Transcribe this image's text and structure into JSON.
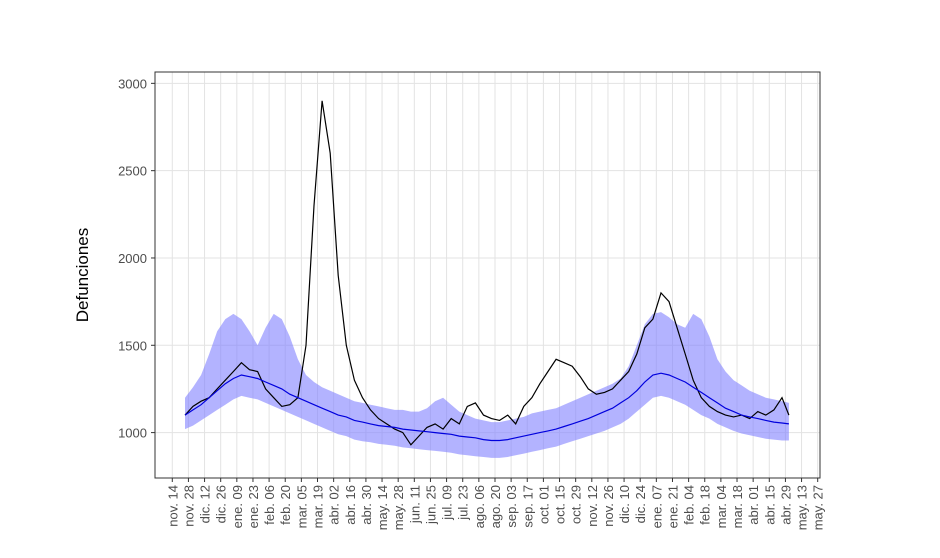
{
  "chart_data": {
    "type": "line",
    "ylabel": "Defunciones",
    "x": [
      11,
      18,
      25,
      32,
      39,
      46,
      53,
      60,
      67,
      74,
      81,
      88,
      95,
      102,
      109,
      116,
      123,
      130,
      137,
      144,
      151,
      158,
      165,
      172,
      179,
      186,
      193,
      200,
      207,
      214,
      221,
      228,
      235,
      242,
      249,
      256,
      263,
      270,
      277,
      284,
      291,
      298,
      305,
      312,
      319,
      326,
      333,
      340,
      347,
      354,
      361,
      368,
      375,
      382,
      389,
      396,
      403,
      410,
      417,
      424,
      431,
      438,
      445,
      452,
      459,
      466,
      473,
      480,
      487,
      494,
      501,
      508,
      515,
      522,
      529,
      535
    ],
    "band": {
      "color": "#8080ff",
      "upper": [
        1200,
        1260,
        1330,
        1450,
        1580,
        1650,
        1680,
        1650,
        1580,
        1500,
        1600,
        1680,
        1650,
        1550,
        1420,
        1330,
        1290,
        1260,
        1240,
        1220,
        1200,
        1180,
        1170,
        1160,
        1150,
        1140,
        1130,
        1130,
        1120,
        1120,
        1140,
        1180,
        1200,
        1160,
        1120,
        1100,
        1080,
        1070,
        1060,
        1060,
        1070,
        1080,
        1090,
        1110,
        1120,
        1130,
        1140,
        1160,
        1180,
        1200,
        1220,
        1240,
        1260,
        1280,
        1310,
        1380,
        1500,
        1620,
        1680,
        1690,
        1660,
        1620,
        1600,
        1680,
        1650,
        1550,
        1420,
        1350,
        1300,
        1270,
        1240,
        1220,
        1200,
        1190,
        1180,
        1170
      ],
      "lower": [
        1020,
        1040,
        1070,
        1100,
        1130,
        1160,
        1190,
        1210,
        1200,
        1190,
        1170,
        1150,
        1130,
        1110,
        1090,
        1070,
        1050,
        1030,
        1010,
        990,
        980,
        960,
        950,
        945,
        935,
        930,
        925,
        915,
        910,
        905,
        900,
        895,
        890,
        885,
        875,
        870,
        865,
        860,
        855,
        855,
        860,
        870,
        880,
        890,
        900,
        910,
        920,
        935,
        950,
        965,
        980,
        995,
        1010,
        1030,
        1050,
        1080,
        1120,
        1160,
        1200,
        1210,
        1200,
        1180,
        1160,
        1130,
        1100,
        1080,
        1050,
        1030,
        1010,
        995,
        985,
        975,
        965,
        960,
        955,
        955
      ]
    },
    "series": [
      {
        "color": "#000000",
        "values": [
          1100,
          1150,
          1180,
          1200,
          1250,
          1300,
          1350,
          1400,
          1360,
          1350,
          1250,
          1200,
          1150,
          1160,
          1200,
          1500,
          2300,
          2900,
          2600,
          1900,
          1500,
          1300,
          1200,
          1130,
          1080,
          1050,
          1020,
          1000,
          930,
          980,
          1030,
          1050,
          1020,
          1080,
          1050,
          1150,
          1170,
          1100,
          1080,
          1070,
          1100,
          1050,
          1150,
          1200,
          1280,
          1350,
          1420,
          1400,
          1380,
          1320,
          1250,
          1220,
          1230,
          1250,
          1300,
          1350,
          1450,
          1600,
          1650,
          1800,
          1750,
          1600,
          1450,
          1300,
          1200,
          1150,
          1120,
          1100,
          1090,
          1100,
          1080,
          1120,
          1100,
          1130,
          1200,
          1100
        ]
      },
      {
        "color": "#0000dd",
        "values": [
          1100,
          1130,
          1160,
          1200,
          1240,
          1280,
          1310,
          1330,
          1320,
          1310,
          1290,
          1270,
          1250,
          1220,
          1200,
          1180,
          1160,
          1140,
          1120,
          1100,
          1090,
          1070,
          1060,
          1050,
          1040,
          1035,
          1030,
          1020,
          1015,
          1010,
          1005,
          1000,
          995,
          990,
          980,
          975,
          970,
          960,
          955,
          955,
          960,
          970,
          980,
          990,
          1000,
          1010,
          1020,
          1035,
          1050,
          1065,
          1080,
          1100,
          1120,
          1140,
          1170,
          1200,
          1240,
          1290,
          1330,
          1340,
          1330,
          1310,
          1290,
          1260,
          1230,
          1200,
          1170,
          1140,
          1120,
          1100,
          1090,
          1080,
          1070,
          1060,
          1055,
          1050
        ]
      }
    ],
    "xlim": [
      -15,
      562
    ],
    "ylim": [
      740,
      3065
    ],
    "yticks": [
      1000,
      1500,
      2000,
      2500,
      3000
    ],
    "xticks": [
      {
        "value": 0,
        "label": "nov. 14"
      },
      {
        "value": 14,
        "label": "nov. 28"
      },
      {
        "value": 28,
        "label": "dic. 12"
      },
      {
        "value": 42,
        "label": "dic. 26"
      },
      {
        "value": 56,
        "label": "ene. 09"
      },
      {
        "value": 70,
        "label": "ene. 23"
      },
      {
        "value": 84,
        "label": "feb. 06"
      },
      {
        "value": 98,
        "label": "feb. 20"
      },
      {
        "value": 112,
        "label": "mar. 05"
      },
      {
        "value": 126,
        "label": "mar. 19"
      },
      {
        "value": 140,
        "label": "abr. 02"
      },
      {
        "value": 154,
        "label": "abr. 16"
      },
      {
        "value": 168,
        "label": "abr. 30"
      },
      {
        "value": 182,
        "label": "may. 14"
      },
      {
        "value": 196,
        "label": "may. 28"
      },
      {
        "value": 210,
        "label": "jun. 11"
      },
      {
        "value": 224,
        "label": "jun. 25"
      },
      {
        "value": 238,
        "label": "jul. 09"
      },
      {
        "value": 252,
        "label": "jul. 23"
      },
      {
        "value": 266,
        "label": "ago. 06"
      },
      {
        "value": 280,
        "label": "ago. 20"
      },
      {
        "value": 294,
        "label": "sep. 03"
      },
      {
        "value": 308,
        "label": "sep. 17"
      },
      {
        "value": 322,
        "label": "oct. 01"
      },
      {
        "value": 336,
        "label": "oct. 15"
      },
      {
        "value": 350,
        "label": "oct. 29"
      },
      {
        "value": 364,
        "label": "nov. 12"
      },
      {
        "value": 378,
        "label": "nov. 26"
      },
      {
        "value": 392,
        "label": "dic. 10"
      },
      {
        "value": 406,
        "label": "dic. 24"
      },
      {
        "value": 420,
        "label": "ene. 07"
      },
      {
        "value": 434,
        "label": "ene. 21"
      },
      {
        "value": 448,
        "label": "feb. 04"
      },
      {
        "value": 462,
        "label": "feb. 18"
      },
      {
        "value": 476,
        "label": "mar. 04"
      },
      {
        "value": 490,
        "label": "mar. 18"
      },
      {
        "value": 504,
        "label": "abr. 01"
      },
      {
        "value": 518,
        "label": "abr. 15"
      },
      {
        "value": 532,
        "label": "abr. 29"
      },
      {
        "value": 546,
        "label": "may. 13"
      },
      {
        "value": 560,
        "label": "may. 27"
      }
    ],
    "grid": true
  }
}
